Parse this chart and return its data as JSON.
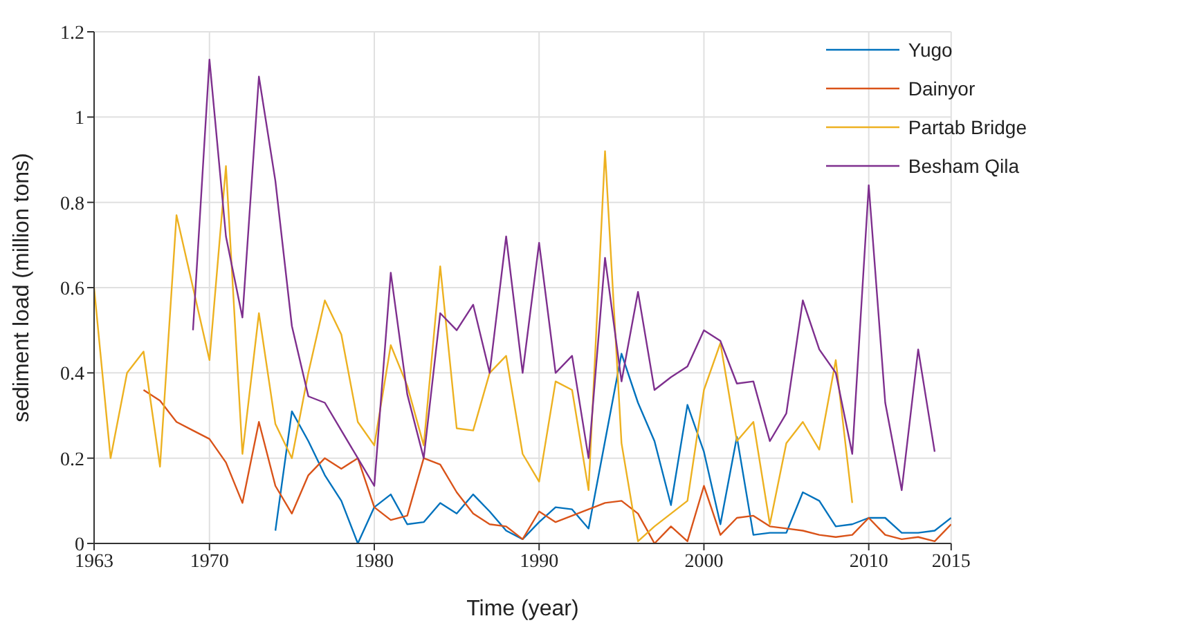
{
  "chart_data": {
    "type": "line",
    "xlabel": "Time (year)",
    "ylabel": "sediment load (million tons)",
    "xlim": [
      1963,
      2015
    ],
    "xticks": [
      1963,
      1970,
      1980,
      1990,
      2000,
      2010,
      2015
    ],
    "ylim": [
      0,
      1.2
    ],
    "yticks": [
      0,
      0.2,
      0.4,
      0.6,
      0.8,
      1,
      1.2
    ],
    "grid": true,
    "legend": "top right",
    "marker": "none",
    "line_style": "solid",
    "series": [
      {
        "name": "Yugo",
        "color": "#0072bd",
        "x": [
          1974,
          1975,
          1976,
          1977,
          1978,
          1979,
          1980,
          1981,
          1982,
          1983,
          1984,
          1985,
          1986,
          1987,
          1988,
          1989,
          1990,
          1991,
          1992,
          1993,
          1994,
          1995,
          1996,
          1997,
          1998,
          1999,
          2000,
          2001,
          2002,
          2003,
          2004,
          2005,
          2006,
          2007,
          2008,
          2009,
          2010,
          2011,
          2012,
          2013,
          2014,
          2015
        ],
        "values": [
          0.03,
          0.31,
          0.24,
          0.16,
          0.1,
          0.0,
          0.085,
          0.115,
          0.045,
          0.05,
          0.095,
          0.07,
          0.115,
          0.075,
          0.03,
          0.01,
          0.05,
          0.085,
          0.08,
          0.035,
          0.24,
          0.445,
          0.33,
          0.24,
          0.09,
          0.325,
          0.215,
          0.045,
          0.25,
          0.02,
          0.025,
          0.025,
          0.12,
          0.1,
          0.04,
          0.045,
          0.06,
          0.06,
          0.025,
          0.025,
          0.03,
          0.06
        ]
      },
      {
        "name": "Dainyor",
        "color": "#d95319",
        "x": [
          1966,
          1967,
          1968,
          1969,
          1970,
          1971,
          1972,
          1973,
          1974,
          1975,
          1976,
          1977,
          1978,
          1979,
          1980,
          1981,
          1982,
          1983,
          1984,
          1985,
          1986,
          1987,
          1988,
          1989,
          1990,
          1991,
          1992,
          1993,
          1994,
          1995,
          1996,
          1997,
          1998,
          1999,
          2000,
          2001,
          2002,
          2003,
          2004,
          2005,
          2006,
          2007,
          2008,
          2009,
          2010,
          2011,
          2012,
          2013,
          2014,
          2015
        ],
        "values": [
          0.36,
          0.335,
          0.285,
          0.265,
          0.245,
          0.19,
          0.095,
          0.285,
          0.135,
          0.07,
          0.16,
          0.2,
          0.175,
          0.2,
          0.085,
          0.055,
          0.065,
          0.2,
          0.185,
          0.12,
          0.07,
          0.045,
          0.04,
          0.01,
          0.075,
          0.05,
          0.065,
          0.08,
          0.095,
          0.1,
          0.07,
          0.0,
          0.04,
          0.005,
          0.135,
          0.02,
          0.06,
          0.065,
          0.04,
          0.035,
          0.03,
          0.02,
          0.015,
          0.02,
          0.06,
          0.02,
          0.01,
          0.015,
          0.005,
          0.045
        ]
      },
      {
        "name": "Partab Bridge",
        "color": "#edb120",
        "x": [
          1963,
          1964,
          1965,
          1966,
          1967,
          1968,
          1969,
          1970,
          1971,
          1972,
          1973,
          1974,
          1975,
          1976,
          1977,
          1978,
          1979,
          1980,
          1981,
          1982,
          1983,
          1984,
          1985,
          1986,
          1987,
          1988,
          1989,
          1990,
          1991,
          1992,
          1993,
          1994,
          1995,
          1996,
          1997,
          1998,
          1999,
          2000,
          2001,
          2002,
          2003,
          2004,
          2005,
          2006,
          2007,
          2008,
          2009
        ],
        "values": [
          0.6,
          0.2,
          0.4,
          0.45,
          0.18,
          0.77,
          0.6,
          0.43,
          0.885,
          0.21,
          0.54,
          0.28,
          0.2,
          0.4,
          0.57,
          0.49,
          0.285,
          0.23,
          0.465,
          0.37,
          0.23,
          0.65,
          0.27,
          0.265,
          0.4,
          0.44,
          0.21,
          0.145,
          0.38,
          0.36,
          0.125,
          0.92,
          0.235,
          0.005,
          0.04,
          0.07,
          0.1,
          0.36,
          0.47,
          0.24,
          0.285,
          0.045,
          0.235,
          0.285,
          0.22,
          0.43,
          0.095
        ]
      },
      {
        "name": "Besham Qila",
        "color": "#7e2f8e",
        "x": [
          1969,
          1970,
          1971,
          1972,
          1973,
          1974,
          1975,
          1976,
          1977,
          1978,
          1979,
          1980,
          1981,
          1982,
          1983,
          1984,
          1985,
          1986,
          1987,
          1988,
          1989,
          1990,
          1991,
          1992,
          1993,
          1994,
          1995,
          1996,
          1997,
          1998,
          1999,
          2000,
          2001,
          2002,
          2003,
          2004,
          2005,
          2006,
          2007,
          2008,
          2009,
          2010,
          2011,
          2012,
          2013,
          2014
        ],
        "values": [
          0.5,
          1.135,
          0.72,
          0.53,
          1.095,
          0.85,
          0.51,
          0.345,
          0.33,
          0.265,
          0.2,
          0.135,
          0.635,
          0.35,
          0.2,
          0.54,
          0.5,
          0.56,
          0.4,
          0.72,
          0.4,
          0.705,
          0.4,
          0.44,
          0.2,
          0.67,
          0.38,
          0.59,
          0.36,
          0.39,
          0.415,
          0.5,
          0.475,
          0.375,
          0.38,
          0.24,
          0.305,
          0.57,
          0.455,
          0.4,
          0.21,
          0.84,
          0.33,
          0.125,
          0.455,
          0.215
        ]
      }
    ]
  }
}
